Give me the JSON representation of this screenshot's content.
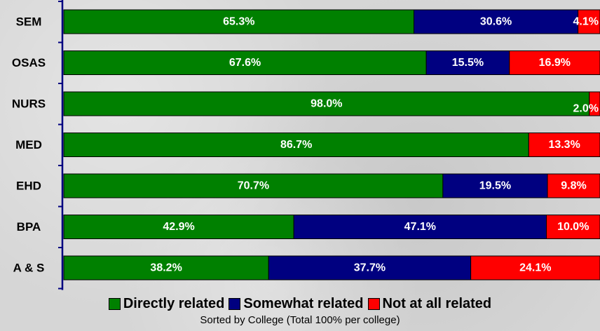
{
  "chart_data": {
    "type": "bar",
    "orientation": "horizontal",
    "stacked": "100%",
    "categories": [
      "SEM",
      "OSAS",
      "NURS",
      "MED",
      "EHD",
      "BPA",
      "A & S"
    ],
    "series": [
      {
        "name": "Directly related",
        "color": "#008000",
        "values": [
          65.3,
          67.6,
          98.0,
          86.7,
          70.7,
          42.9,
          38.2
        ],
        "labels": [
          "65.3%",
          "67.6%",
          "98.0%",
          "86.7%",
          "70.7%",
          "42.9%",
          "38.2%"
        ]
      },
      {
        "name": "Somewhat related",
        "color": "#000080",
        "values": [
          30.6,
          15.5,
          0.0,
          0.0,
          19.5,
          47.1,
          37.7
        ],
        "labels": [
          "30.6%",
          "15.5%",
          "",
          "",
          "19.5%",
          "47.1%",
          "37.7%"
        ]
      },
      {
        "name": "Not at all related",
        "color": "#ff0000",
        "values": [
          4.1,
          16.9,
          2.0,
          13.3,
          9.8,
          10.0,
          24.1
        ],
        "labels": [
          "4.1%",
          "16.9%",
          "2.0%",
          "13.3%",
          "9.8%",
          "10.0%",
          "24.1%"
        ]
      }
    ],
    "xlim": [
      0,
      100
    ],
    "grid": false,
    "legend_position": "bottom",
    "caption": "Sorted by College (Total 100% per college)"
  }
}
